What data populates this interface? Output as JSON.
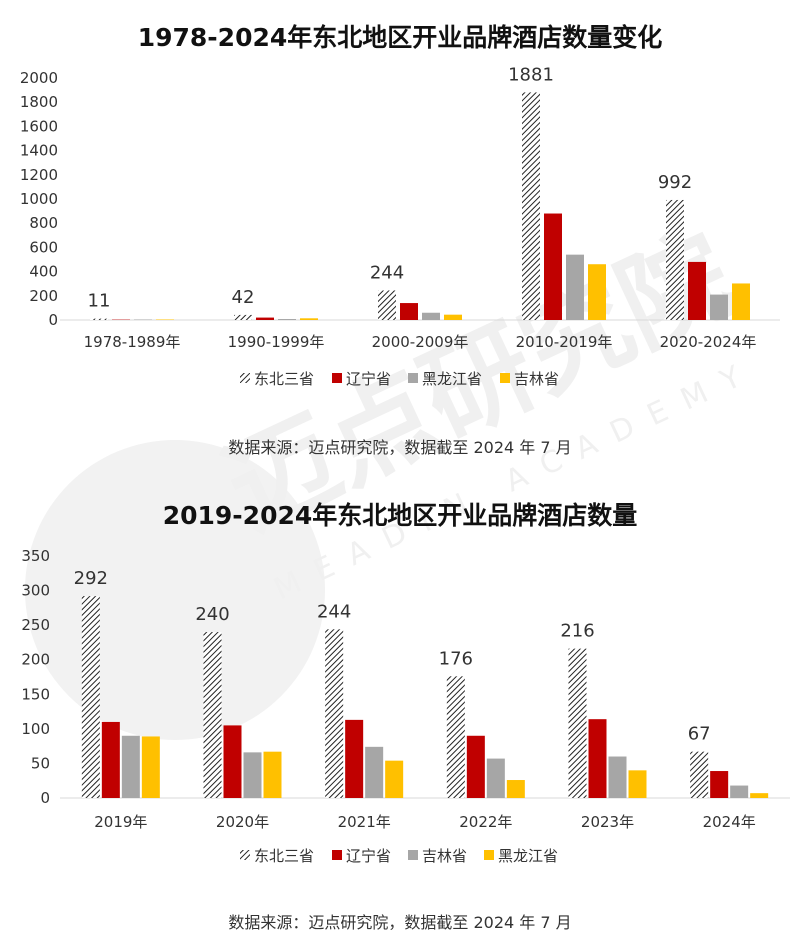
{
  "colors": {
    "hatch": "#222222",
    "liaoning": "#c00000",
    "heilongjiang": "#a6a6a6",
    "jilin": "#ffc000"
  },
  "chart_data": [
    {
      "type": "bar",
      "title": "1978-2024年东北地区开业品牌酒店数量变化",
      "categories": [
        "1978-1989年",
        "1990-1999年",
        "2000-2009年",
        "2010-2019年",
        "2020-2024年"
      ],
      "series": [
        {
          "name": "东北三省",
          "values": [
            11,
            42,
            244,
            1881,
            992
          ],
          "color_key": "hatch",
          "labeled": true
        },
        {
          "name": "辽宁省",
          "values": [
            3,
            20,
            140,
            880,
            480
          ],
          "color_key": "liaoning"
        },
        {
          "name": "黑龙江省",
          "values": [
            4,
            8,
            60,
            540,
            210
          ],
          "color_key": "heilongjiang"
        },
        {
          "name": "吉林省",
          "values": [
            4,
            14,
            44,
            461,
            302
          ],
          "color_key": "jilin"
        }
      ],
      "yticks": [
        "0",
        "200",
        "400",
        "600",
        "800",
        "1000",
        "1200",
        "1400",
        "1600",
        "1800",
        "2000"
      ],
      "ylim": [
        0,
        2000
      ],
      "legend_position": "bottom",
      "source": "数据来源：迈点研究院，数据截至 2024 年 7 月"
    },
    {
      "type": "bar",
      "title": "2019-2024年东北地区开业品牌酒店数量",
      "categories": [
        "2019年",
        "2020年",
        "2021年",
        "2022年",
        "2023年",
        "2024年"
      ],
      "series": [
        {
          "name": "东北三省",
          "values": [
            292,
            240,
            244,
            176,
            216,
            67
          ],
          "color_key": "hatch",
          "labeled": true
        },
        {
          "name": "辽宁省",
          "values": [
            110,
            105,
            113,
            90,
            114,
            39
          ],
          "color_key": "liaoning"
        },
        {
          "name": "吉林省",
          "values": [
            90,
            66,
            74,
            57,
            60,
            18
          ],
          "color_key": "heilongjiang"
        },
        {
          "name": "黑龙江省",
          "values": [
            89,
            67,
            54,
            26,
            40,
            7
          ],
          "color_key": "jilin"
        }
      ],
      "yticks": [
        "0",
        "50",
        "100",
        "150",
        "200",
        "250",
        "300",
        "350"
      ],
      "ylim": [
        0,
        350
      ],
      "legend_position": "bottom",
      "source": "数据来源：迈点研究院，数据截至 2024 年 7 月"
    }
  ],
  "watermark": {
    "text_cn": "迈点研究院",
    "text_en": "MEADIN ACADEMY"
  }
}
